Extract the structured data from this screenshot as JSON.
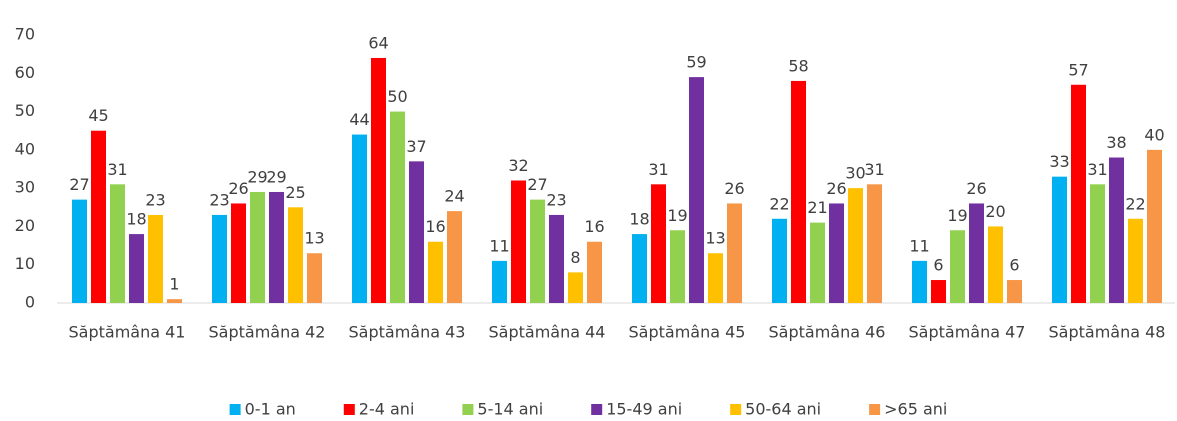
{
  "chart_data": {
    "type": "bar",
    "categories": [
      "Săptămâna 41",
      "Săptămâna 42",
      "Săptămâna 43",
      "Săptămâna 44",
      "Săptămâna 45",
      "Săptămâna 46",
      "Săptămâna 47",
      "Săptămâna 48"
    ],
    "series": [
      {
        "name": "0-1 an",
        "color": "#00b0f0",
        "values": [
          27,
          23,
          44,
          11,
          18,
          22,
          11,
          33
        ]
      },
      {
        "name": "2-4 ani",
        "color": "#ff0000",
        "values": [
          45,
          26,
          64,
          32,
          31,
          58,
          6,
          57
        ]
      },
      {
        "name": "5-14 ani",
        "color": "#92d050",
        "values": [
          31,
          29,
          50,
          27,
          19,
          21,
          19,
          31
        ]
      },
      {
        "name": "15-49 ani",
        "color": "#7030a0",
        "values": [
          18,
          29,
          37,
          23,
          59,
          26,
          26,
          38
        ]
      },
      {
        "name": "50-64 ani",
        "color": "#ffc000",
        "values": [
          23,
          25,
          16,
          8,
          13,
          30,
          20,
          22
        ]
      },
      {
        "name": ">65 ani",
        "color": "#f79646",
        "values": [
          1,
          13,
          24,
          16,
          26,
          31,
          6,
          40
        ]
      }
    ],
    "ylim": [
      0,
      70
    ],
    "yticks": [
      0,
      10,
      20,
      30,
      40,
      50,
      60,
      70
    ],
    "grid": false,
    "legend": "bottom"
  }
}
